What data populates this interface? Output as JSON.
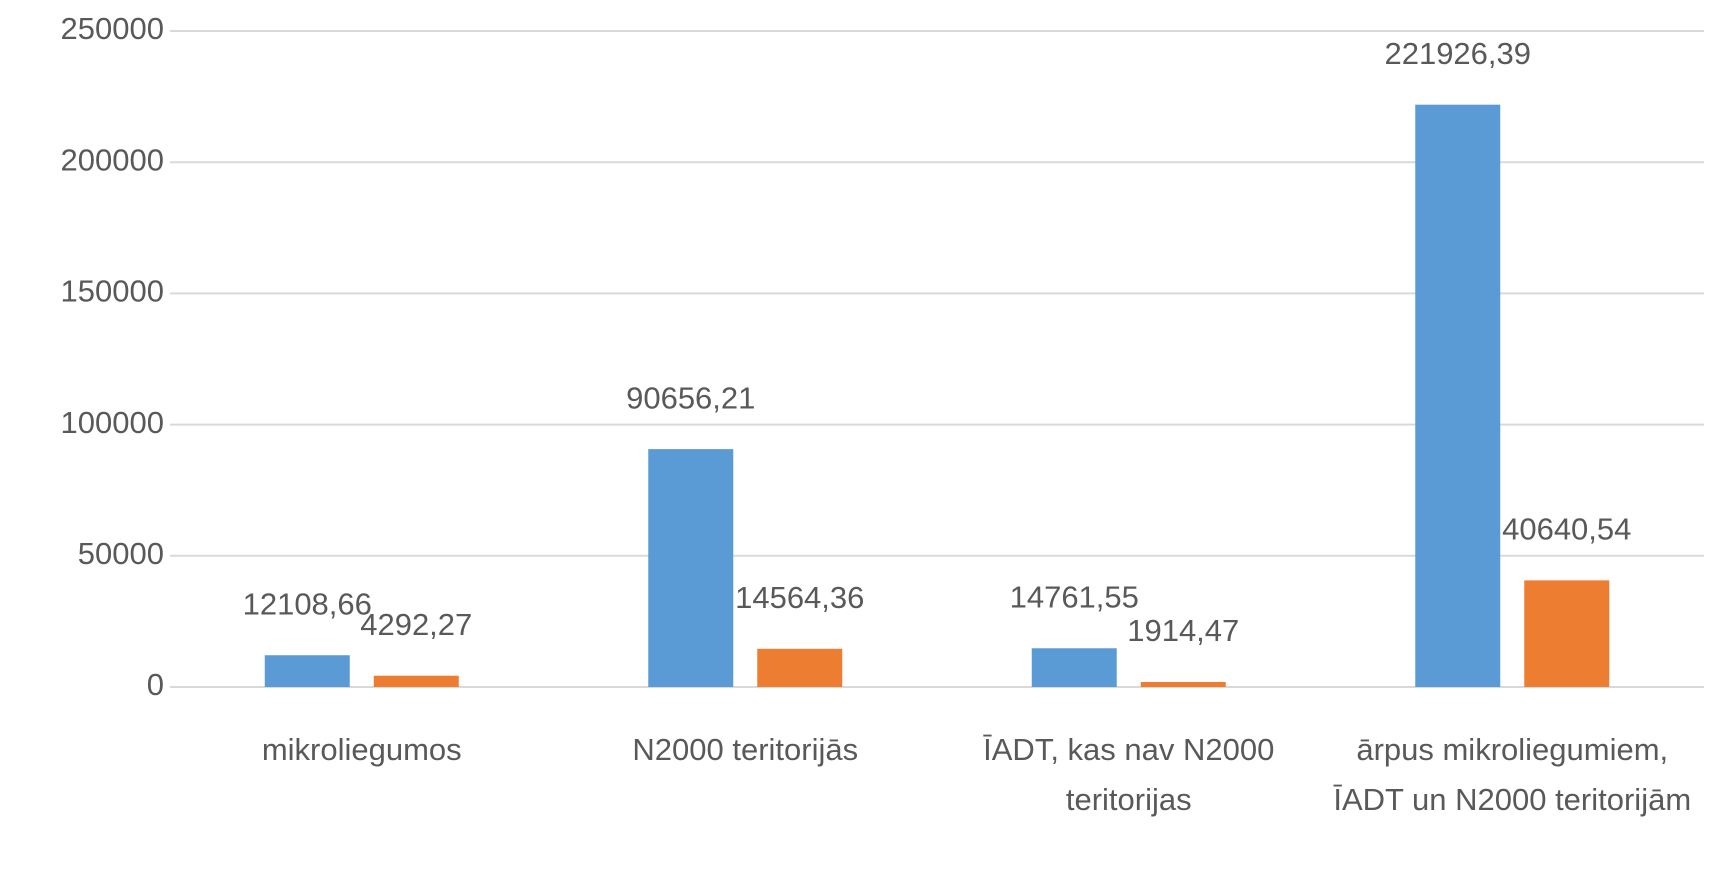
{
  "chart_data": {
    "type": "bar",
    "categories": [
      "mikroliegumos",
      "N2000 teritorijās",
      "ĪADT, kas nav N2000 teritorijas",
      "ārpus mikroliegumiem, ĪADT un N2000 teritorijām"
    ],
    "series": [
      {
        "color": "#5b9bd5",
        "values": [
          12108.66,
          90656.21,
          14761.55,
          221926.39
        ],
        "value_labels": [
          "12108,66",
          "90656,21",
          "14761,55",
          "221926,39"
        ]
      },
      {
        "color": "#ed7d31",
        "values": [
          4292.27,
          14564.36,
          1914.47,
          40640.54
        ],
        "value_labels": [
          "4292,27",
          "14564,36",
          "1914,47",
          "40640,54"
        ]
      }
    ],
    "ylim": [
      0,
      250000
    ],
    "yticks": [
      0,
      50000,
      100000,
      150000,
      200000,
      250000
    ],
    "grid": true
  }
}
